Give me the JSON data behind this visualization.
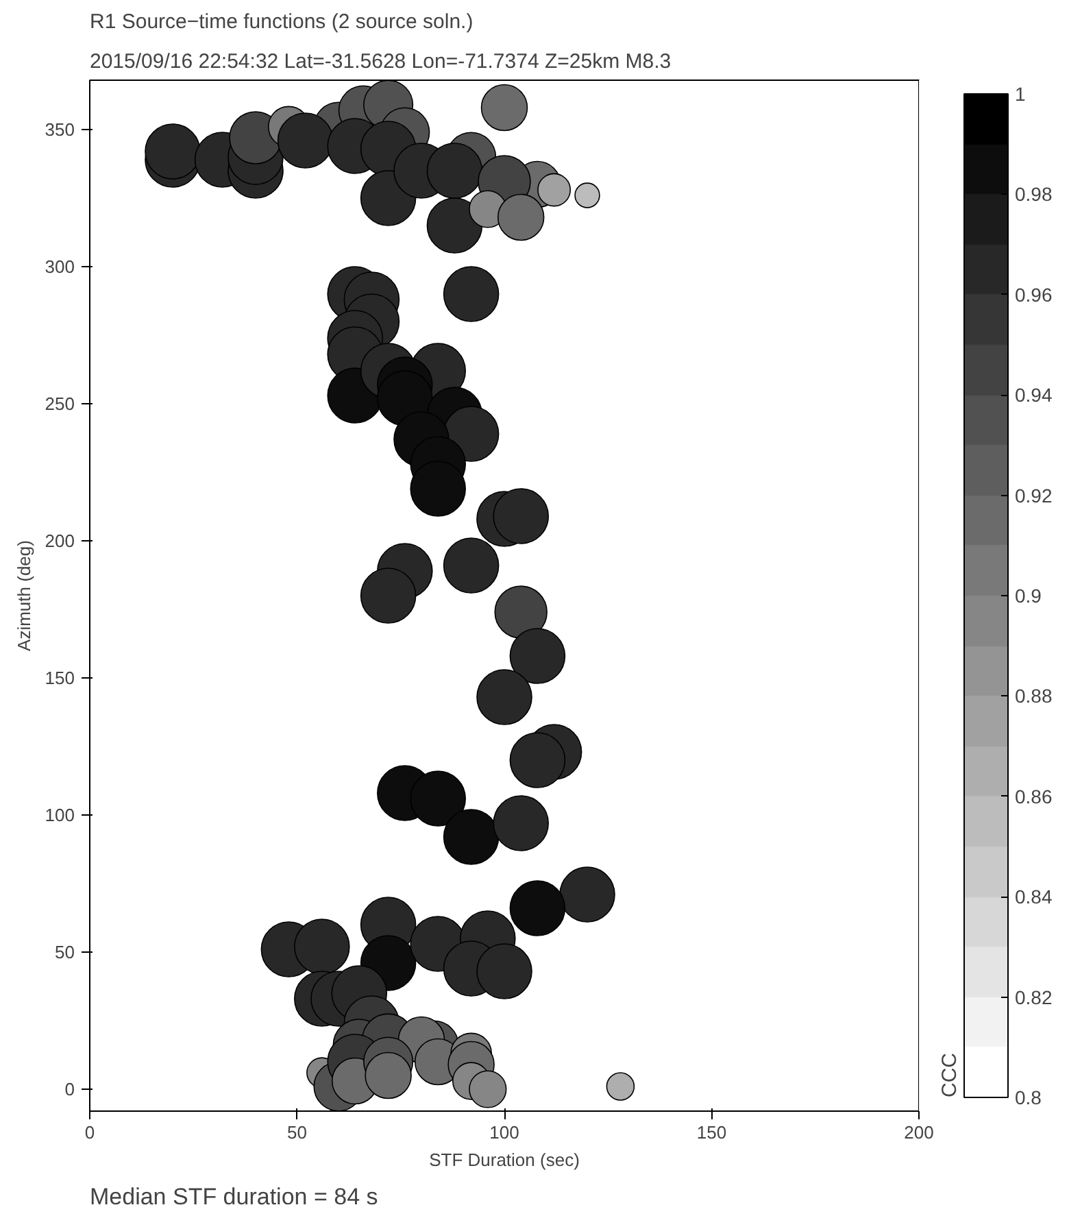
{
  "chart_data": {
    "type": "bubble",
    "title": "R1 Source−time functions (2 source soln.)",
    "subtitle": "2015/09/16 22:54:32  Lat=-31.5628 Lon=-71.7374  Z=25km  M8.3",
    "xlabel": "STF Duration (sec)",
    "ylabel": "Azimuth (deg)",
    "clabel": "CCC",
    "annotations": [
      "Median STF duration = 84 s"
    ],
    "x": [
      20,
      20,
      32,
      40,
      40,
      40,
      48,
      60,
      52,
      66,
      72,
      76,
      64,
      72,
      72,
      80,
      92,
      88,
      88,
      100,
      108,
      100,
      96,
      104,
      112,
      120,
      64,
      68,
      68,
      64,
      64,
      64,
      92,
      84,
      72,
      76,
      76,
      88,
      92,
      80,
      84,
      84,
      100,
      104,
      76,
      72,
      92,
      104,
      108,
      100,
      112,
      108,
      76,
      84,
      92,
      104,
      120,
      108,
      48,
      56,
      72,
      72,
      84,
      96,
      92,
      100,
      56,
      60,
      65,
      68,
      65,
      72,
      83,
      80,
      56,
      60,
      64,
      64,
      72,
      72,
      84,
      92,
      92,
      92,
      96,
      128
    ],
    "values": [
      339,
      342,
      339,
      335,
      340,
      347,
      351,
      351,
      346,
      357,
      359,
      349,
      344,
      343,
      325,
      335,
      340,
      335,
      315,
      358,
      330,
      331,
      321,
      318,
      328,
      326,
      290,
      288,
      280,
      274,
      268,
      253,
      290,
      262,
      262,
      257,
      252,
      246,
      239,
      237,
      228,
      219,
      208,
      209,
      189,
      180,
      191,
      174,
      158,
      143,
      123,
      120,
      108,
      106,
      92,
      97,
      71,
      66,
      51,
      52,
      60,
      46,
      53,
      55,
      44,
      43,
      33,
      33,
      35,
      24,
      16,
      18,
      16,
      18,
      6,
      1,
      10,
      3,
      10,
      5,
      10,
      13,
      9,
      3,
      0,
      1
    ],
    "cvalues": [
      0.97,
      0.97,
      0.97,
      0.97,
      0.97,
      0.945,
      0.905,
      0.93,
      0.97,
      0.93,
      0.93,
      0.93,
      0.97,
      0.97,
      0.97,
      0.97,
      0.93,
      0.97,
      0.97,
      0.915,
      0.915,
      0.945,
      0.895,
      0.915,
      0.88,
      0.855,
      0.97,
      0.97,
      0.97,
      0.97,
      0.97,
      0.985,
      0.97,
      0.97,
      0.97,
      0.985,
      0.985,
      0.985,
      0.97,
      0.985,
      0.985,
      0.985,
      0.97,
      0.97,
      0.97,
      0.97,
      0.97,
      0.945,
      0.97,
      0.97,
      0.97,
      0.97,
      0.985,
      0.985,
      0.985,
      0.97,
      0.97,
      0.985,
      0.97,
      0.97,
      0.97,
      0.985,
      0.97,
      0.97,
      0.97,
      0.97,
      0.97,
      0.97,
      0.97,
      0.955,
      0.945,
      0.945,
      0.93,
      0.915,
      0.895,
      0.93,
      0.955,
      0.915,
      0.93,
      0.915,
      0.915,
      0.905,
      0.915,
      0.895,
      0.895,
      0.865
    ],
    "sizes": [
      1,
      1,
      1,
      1,
      1,
      0.9,
      0.55,
      0.8,
      1,
      0.8,
      0.8,
      0.8,
      1,
      1,
      1,
      1,
      0.8,
      1,
      1,
      0.7,
      0.7,
      0.9,
      0.45,
      0.7,
      0.35,
      0.2,
      1,
      1,
      1,
      1,
      1,
      1,
      1,
      1,
      1,
      1,
      1,
      1,
      1,
      1,
      1,
      1,
      1,
      1,
      1,
      1,
      1,
      0.9,
      1,
      1,
      1,
      1,
      1,
      1,
      1,
      1,
      1,
      1,
      1,
      1,
      1,
      1,
      1,
      1,
      1,
      1,
      1,
      1,
      1,
      1,
      0.9,
      0.9,
      0.8,
      0.7,
      0.3,
      0.8,
      1,
      0.7,
      0.8,
      0.7,
      0.7,
      0.55,
      0.7,
      0.45,
      0.45,
      0.25
    ],
    "xlim": [
      0,
      200
    ],
    "ylim": [
      -8,
      368
    ],
    "xticks": [
      0,
      50,
      100,
      150,
      200
    ],
    "yticks": [
      0,
      50,
      100,
      150,
      200,
      250,
      300,
      350
    ],
    "clim": [
      0.8,
      1
    ],
    "cticks": [
      0.8,
      0.82,
      0.84,
      0.86,
      0.88,
      0.9,
      0.92,
      0.94,
      0.96,
      0.98,
      1
    ],
    "grid": false
  }
}
